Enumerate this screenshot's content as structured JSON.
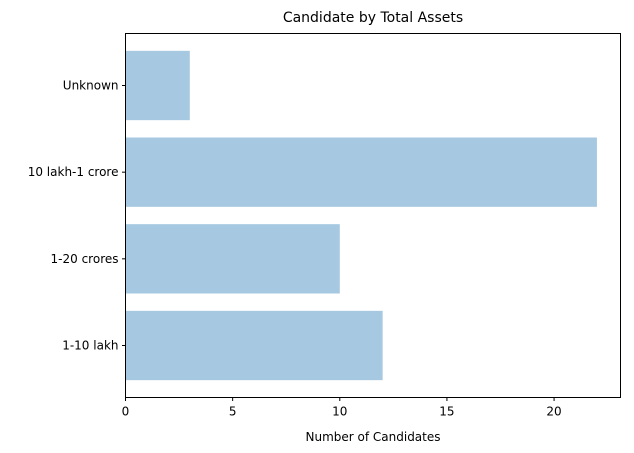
{
  "chart_data": {
    "type": "bar",
    "orientation": "horizontal",
    "title": "Candidate by Total Assets",
    "xlabel": "Number of Candidates",
    "ylabel": "",
    "categories": [
      "1-10 lakh",
      "1-20 crores",
      "10 lakh-1 crore",
      "Unknown"
    ],
    "values": [
      12,
      10,
      22,
      3
    ],
    "xlim": [
      0,
      23.1
    ],
    "xticks": [
      0,
      5,
      10,
      15,
      20
    ],
    "bar_color": "#a6c8e0",
    "grid": false,
    "legend": "none"
  }
}
